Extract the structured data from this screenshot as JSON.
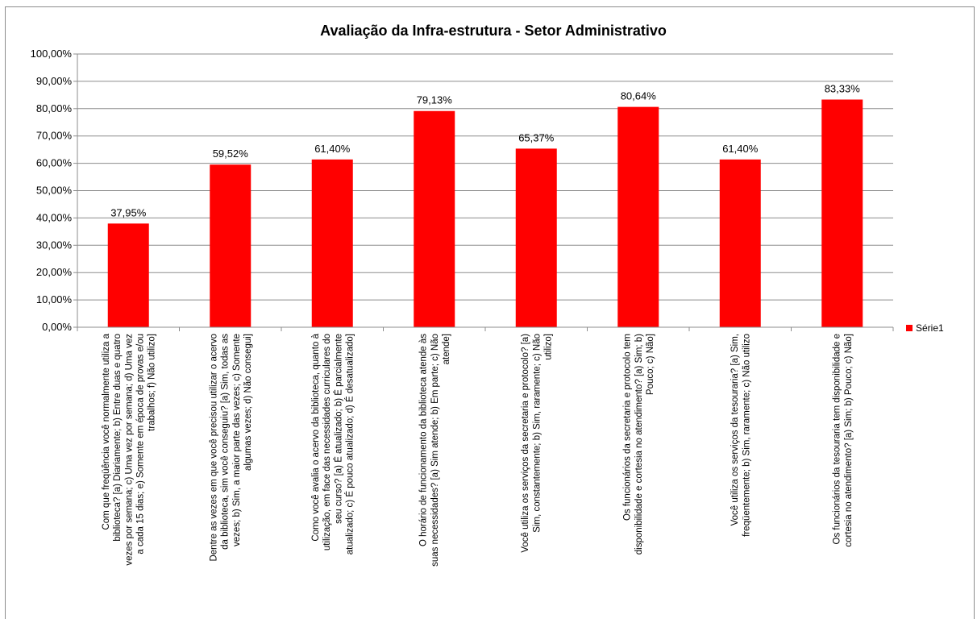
{
  "chart_data": {
    "type": "bar",
    "title": "Avaliação da Infra-estrutura - Setor Administrativo",
    "ylim": [
      0,
      100
    ],
    "y_ticks": [
      "0,00%",
      "10,00%",
      "20,00%",
      "30,00%",
      "40,00%",
      "50,00%",
      "60,00%",
      "70,00%",
      "80,00%",
      "90,00%",
      "100,00%"
    ],
    "grid": true,
    "legend_position": "right",
    "bar_color": "#ff0000",
    "categories": [
      [
        "Com que freqüência você normalmente utiliza a",
        "biblioteca? [a) Diariamente; b) Entre duas e quatro",
        "vezes por semana; c) Uma vez por semana; d) Uma vez",
        "a cada 15 dias; e) Somente em época de provas e/ou",
        "trabalhos; f) Não utilizo]"
      ],
      [
        "Dentre as vezes em que você precisou utilizar o acervo",
        "da biblioteca, sim você conseguiu? [a) Sim, todas as",
        "vezes; b) Sim, a maior parte das vezes; c) Somente",
        "algumas vezes; d) Não consegui]"
      ],
      [
        "Como você avalia o acervo da biblioteca, quanto à",
        "utilização, em face das necessidades curriculares do",
        "seu curso? [a) É atualizado; b) É parcialmente",
        "atualizado; c) É pouco atualizado; d) É desatualizado]"
      ],
      [
        "O horário de funcionamento da biblioteca atende às",
        "suas necessidades? [a) Sim atende; b) Em parte; c) Não",
        "atende]"
      ],
      [
        "Você utiliza os serviços da secretaria e protocolo? [a)",
        "Sim, constantemente; b) Sim, raramente; c) Não",
        "utilizo]"
      ],
      [
        "Os funcionários da secretaria e protocolo tem",
        "disponibilidade e cortesia no atendimento? [a) Sim; b)",
        "Pouco; c) Não]"
      ],
      [
        "Você utiliza os serviços da tesouraria? [a) Sim,",
        "freqüentemente; b) Sim, raramente; c) Não utilizo"
      ],
      [
        "Os funcionários da tesouraria tem disponibilidade e",
        "cortesia no atendimento? [a) Sim; b) Pouco; c) Não]"
      ]
    ],
    "series": [
      {
        "name": "Série1",
        "values": [
          37.95,
          59.52,
          61.4,
          79.13,
          65.37,
          80.64,
          61.4,
          83.33
        ],
        "labels": [
          "37,95%",
          "59,52%",
          "61,40%",
          "79,13%",
          "65,37%",
          "80,64%",
          "61,40%",
          "83,33%"
        ]
      }
    ]
  }
}
